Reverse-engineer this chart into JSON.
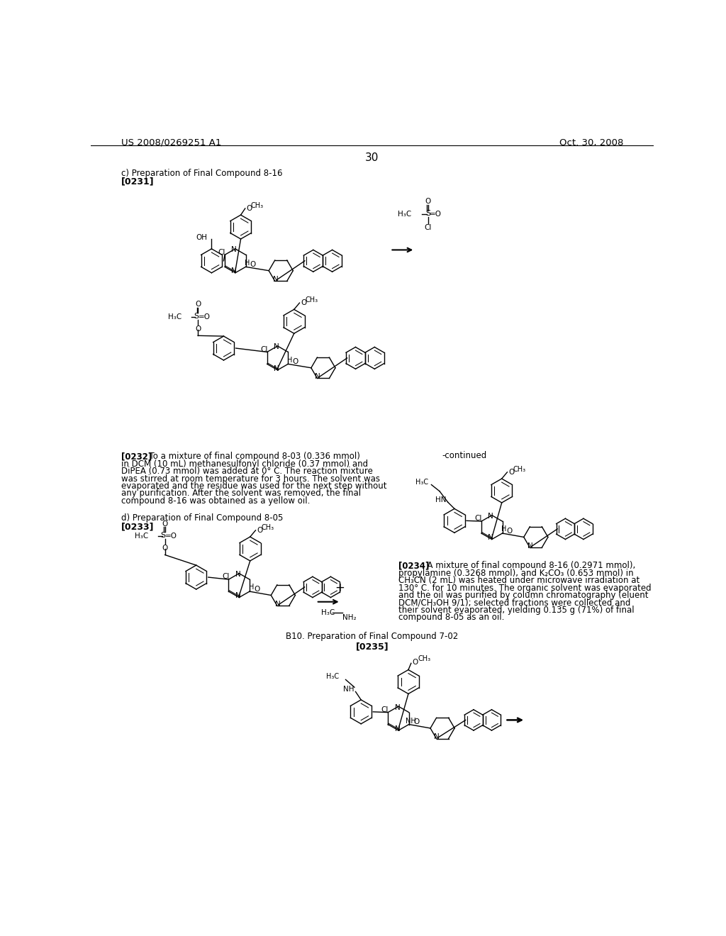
{
  "background_color": "#ffffff",
  "header_left": "US 2008/0269251 A1",
  "header_right": "Oct. 30, 2008",
  "page_number": "30",
  "section_c_title": "c) Preparation of Final Compound 8-16",
  "section_c_bold": "[0231]",
  "section_d_title": "d) Preparation of Final Compound 8-05",
  "para_233_bold": "[0233]",
  "continued_label": "-continued",
  "para_234_bold": "[0234]",
  "section_b10_title": "B10. Preparation of Final Compound 7-02",
  "para_235_bold": "[0235]",
  "lines_232": [
    "[0232]   To a mixture of final compound 8-03 (0.336 mmol)",
    "in DCM (10 mL) methanesulfonyl chloride (0.37 mmol) and",
    "DiPEA (0.73 mmol) was added at 0° C. The reaction mixture",
    "was stirred at room temperature for 3 hours. The solvent was",
    "evaporated and the residue was used for the next step without",
    "any purification. After the solvent was removed, the final",
    "compound 8-16 was obtained as a yellow oil."
  ],
  "lines_234": [
    "[0234]   A mixture of final compound 8-16 (0.2971 mmol),",
    "propylamine (0.3268 mmol), and K₂CO₃ (0.653 mmol) in",
    "CH₃CN (2 mL) was heated under microwave irradiation at",
    "130° C. for 10 minutes. The organic solvent was evaporated",
    "and the oil was purified by column chromatography (eluent",
    "DCM/CH₃OH 9/1); selected fractions were collected and",
    "their solvent evaporated, yielding 0.135 g (71%) of final",
    "compound 8-05 as an oil."
  ]
}
